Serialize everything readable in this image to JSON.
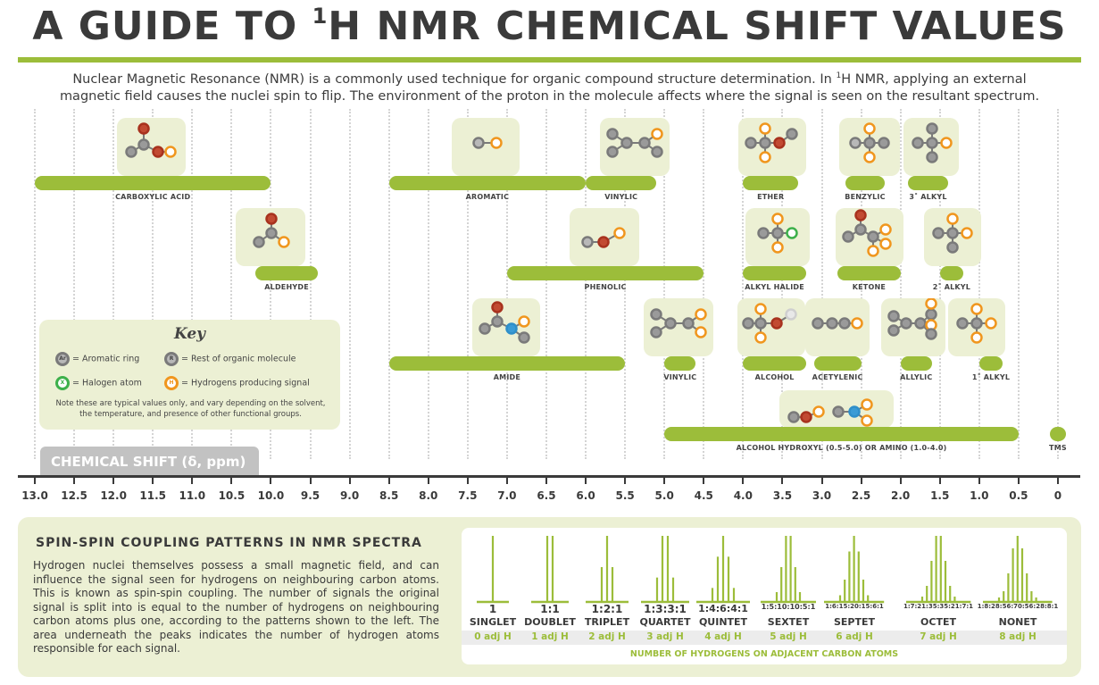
{
  "title": {
    "pre": "A GUIDE TO ",
    "sup": "1",
    "post": "H NMR CHEMICAL SHIFT VALUES"
  },
  "intro": {
    "line1_a": "Nuclear Magnetic Resonance (NMR) is a commonly used technique for organic compound structure determination. In ",
    "line1_sup": "1",
    "line1_b": "H NMR, applying an external",
    "line2": "magnetic field causes the nuclei spin to flip. The environment of the proton in the molecule affects where the signal is seen on the resultant spectrum."
  },
  "colors": {
    "accent": "#9cbd3a",
    "panel": "#ecf0d4",
    "oxygen": "#a8321e",
    "hydrogen": "#f0961e",
    "nitrogen": "#2f8fc9",
    "halogen": "#3db04b",
    "rgroup": "#7a7a7a"
  },
  "axis": {
    "label": "CHEMICAL SHIFT (δ, ppm)",
    "min": 0,
    "max": 13,
    "ticks": [
      "13.0",
      "12.5",
      "12.0",
      "11.5",
      "11.0",
      "10.5",
      "10.0",
      "9.5",
      "9.0",
      "8.5",
      "8.0",
      "7.5",
      "7.0",
      "6.5",
      "6.0",
      "5.5",
      "5.0",
      "4.5",
      "4.0",
      "3.5",
      "3.0",
      "2.5",
      "2.0",
      "1.5",
      "1.0",
      "0.5",
      "0"
    ]
  },
  "shifts": [
    {
      "label": "CARBOXYLIC ACID",
      "from": 13.0,
      "to": 10.0,
      "row": 1,
      "mol": "carbonyl-oh"
    },
    {
      "label": "AROMATIC",
      "from": 8.5,
      "to": 6.0,
      "row": 1,
      "mol": "aromatic"
    },
    {
      "label": "VINYLIC",
      "from": 6.0,
      "to": 5.1,
      "row": 1,
      "mol": "vinyl"
    },
    {
      "label": "ETHER",
      "from": 4.0,
      "to": 3.3,
      "row": 1,
      "mol": "ether"
    },
    {
      "label": "BENZYLIC",
      "from": 2.7,
      "to": 2.2,
      "row": 1,
      "mol": "benzyl"
    },
    {
      "label": "3˚ ALKYL",
      "from": 1.9,
      "to": 1.4,
      "row": 1,
      "mol": "alkyl3"
    },
    {
      "label": "ALDEHYDE",
      "from": 10.2,
      "to": 9.4,
      "row": 2,
      "mol": "aldehyde"
    },
    {
      "label": "PHENOLIC",
      "from": 7.0,
      "to": 4.5,
      "row": 2,
      "mol": "phenol"
    },
    {
      "label": "ALKYL HALIDE",
      "from": 4.0,
      "to": 3.2,
      "row": 2,
      "mol": "halide"
    },
    {
      "label": "KETONE",
      "from": 2.8,
      "to": 2.0,
      "row": 2,
      "mol": "ketone"
    },
    {
      "label": "2˚ ALKYL",
      "from": 1.5,
      "to": 1.2,
      "row": 2,
      "mol": "alkyl2"
    },
    {
      "label": "AMIDE",
      "from": 8.5,
      "to": 5.5,
      "row": 3,
      "mol": "amide"
    },
    {
      "label": "VINYLIC",
      "from": 5.0,
      "to": 4.6,
      "row": 3,
      "mol": "vinyl2"
    },
    {
      "label": "ALCOHOL",
      "from": 4.0,
      "to": 3.2,
      "row": 3,
      "mol": "alcohol"
    },
    {
      "label": "ACETYLENIC",
      "from": 3.1,
      "to": 2.5,
      "row": 3,
      "mol": "alkyne"
    },
    {
      "label": "ALLYLIC",
      "from": 2.0,
      "to": 1.6,
      "row": 3,
      "mol": "allyl"
    },
    {
      "label": "1˚ ALKYL",
      "from": 1.0,
      "to": 0.7,
      "row": 3,
      "mol": "alkyl1"
    },
    {
      "label": "ALCOHOL HYDROXYL (0.5-5.0) OR AMINO (1.0-4.0)",
      "from": 5.0,
      "to": 0.5,
      "row": 4,
      "mol": "hydroxyl-amino"
    },
    {
      "label": "TMS",
      "from": 0.1,
      "to": -0.1,
      "row": 4,
      "mol": ""
    }
  ],
  "key": {
    "title": "Key",
    "aromatic": "= Aromatic ring",
    "rgroup": "= Rest of organic molecule",
    "halogen": "= Halogen atom",
    "hydrogen": "= Hydrogens producing signal",
    "note": "Note these are typical values only, and vary depending on the solvent, the temperature, and presence of other functional groups.",
    "sym_ar": "Ar",
    "sym_r": "R",
    "sym_x": "X",
    "sym_h": "H"
  },
  "spin": {
    "title": "SPIN-SPIN COUPLING PATTERNS IN NMR SPECTRA",
    "text": "Hydrogen nuclei themselves possess a small magnetic field, and can influence the signal seen for hydrogens on neighbouring carbon atoms. This is known as spin-spin coupling. The number of signals the original signal is split into is equal to the number of hydrogens on neighbouring carbon atoms plus one, according to the patterns shown to the left. The area underneath the peaks indicates the number of hydrogen atoms responsible for each signal.",
    "footer": "NUMBER OF HYDROGENS ON ADJACENT CARBON ATOMS",
    "patterns": [
      {
        "name": "SINGLET",
        "ratio": "1",
        "adj": "0 adj H",
        "peaks": [
          1
        ]
      },
      {
        "name": "DOUBLET",
        "ratio": "1:1",
        "adj": "1 adj H",
        "peaks": [
          1,
          1
        ]
      },
      {
        "name": "TRIPLET",
        "ratio": "1:2:1",
        "adj": "2 adj H",
        "peaks": [
          1,
          2,
          1
        ]
      },
      {
        "name": "QUARTET",
        "ratio": "1:3:3:1",
        "adj": "3 adj H",
        "peaks": [
          1,
          3,
          3,
          1
        ]
      },
      {
        "name": "QUINTET",
        "ratio": "1:4:6:4:1",
        "adj": "4 adj H",
        "peaks": [
          1,
          4,
          6,
          4,
          1
        ]
      },
      {
        "name": "SEXTET",
        "ratio": "1:5:10:10:5:1",
        "adj": "5 adj H",
        "peaks": [
          1,
          5,
          10,
          10,
          5,
          1
        ]
      },
      {
        "name": "SEPTET",
        "ratio": "1:6:15:20:15:6:1",
        "adj": "6 adj H",
        "peaks": [
          1,
          6,
          15,
          20,
          15,
          6,
          1
        ]
      },
      {
        "name": "OCTET",
        "ratio": "1:7:21:35:35:21:7:1",
        "adj": "7 adj H",
        "peaks": [
          1,
          7,
          21,
          35,
          35,
          21,
          7,
          1
        ]
      },
      {
        "name": "NONET",
        "ratio": "1:8:28:56:70:56:28:8:1",
        "adj": "8 adj H",
        "peaks": [
          1,
          8,
          28,
          56,
          70,
          56,
          28,
          8,
          1
        ]
      }
    ]
  }
}
